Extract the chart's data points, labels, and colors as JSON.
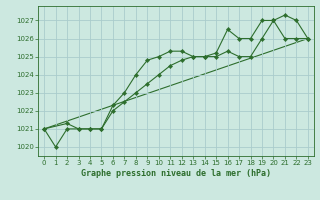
{
  "bg_color": "#cce8e0",
  "grid_color": "#aacccc",
  "line_color": "#2d6e2d",
  "title": "Graphe pression niveau de la mer (hPa)",
  "xlim": [
    -0.5,
    23.5
  ],
  "ylim": [
    1019.5,
    1027.8
  ],
  "yticks": [
    1020,
    1021,
    1022,
    1023,
    1024,
    1025,
    1026,
    1027
  ],
  "xticks": [
    0,
    1,
    2,
    3,
    4,
    5,
    6,
    7,
    8,
    9,
    10,
    11,
    12,
    13,
    14,
    15,
    16,
    17,
    18,
    19,
    20,
    21,
    22,
    23
  ],
  "line1_x": [
    0,
    1,
    2,
    3,
    4,
    5,
    6,
    7,
    8,
    9,
    10,
    11,
    12,
    13,
    14,
    15,
    16,
    17,
    18,
    19,
    20,
    21,
    22,
    23
  ],
  "line1_y": [
    1021,
    1020,
    1021,
    1021,
    1021,
    1021,
    1022.3,
    1023,
    1024,
    1024.8,
    1025,
    1025.3,
    1025.3,
    1025,
    1025,
    1025,
    1025.3,
    1025,
    1025,
    1026,
    1027,
    1027.3,
    1027,
    1026
  ],
  "line2_x": [
    0,
    2,
    3,
    4,
    5,
    6,
    7,
    8,
    9,
    10,
    11,
    12,
    13,
    14,
    15,
    16,
    17,
    18,
    19,
    20,
    21,
    22,
    23
  ],
  "line2_y": [
    1021,
    1021.3,
    1021,
    1021,
    1021,
    1022,
    1022.5,
    1023,
    1023.5,
    1024,
    1024.5,
    1024.8,
    1025,
    1025,
    1025.2,
    1026.5,
    1026,
    1026,
    1027,
    1027,
    1026,
    1026,
    1026
  ],
  "line3_x": [
    0,
    23
  ],
  "line3_y": [
    1021,
    1026
  ]
}
